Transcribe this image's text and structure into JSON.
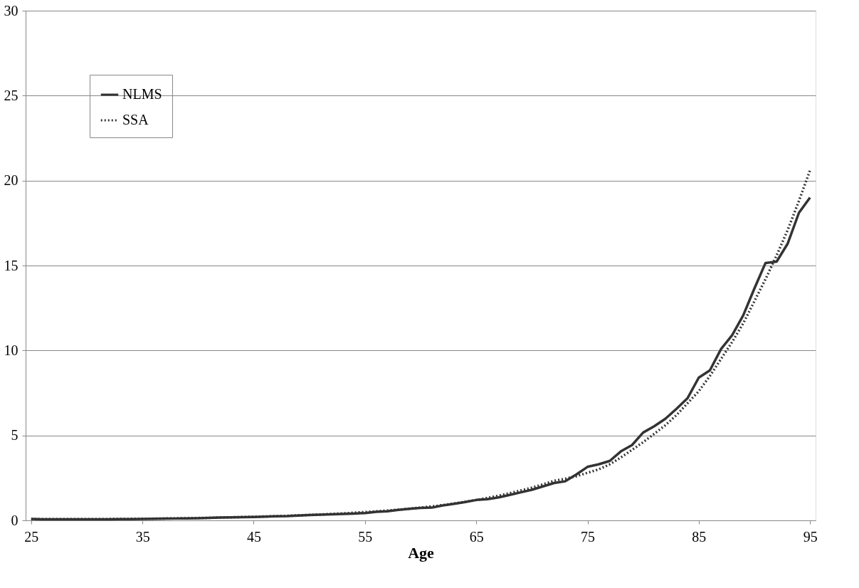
{
  "chart_data": {
    "type": "line",
    "xlabel": "Age",
    "x": [
      25,
      26,
      27,
      28,
      29,
      30,
      31,
      32,
      33,
      34,
      35,
      36,
      37,
      38,
      39,
      40,
      41,
      42,
      43,
      44,
      45,
      46,
      47,
      48,
      49,
      50,
      51,
      52,
      53,
      54,
      55,
      56,
      57,
      58,
      59,
      60,
      61,
      62,
      63,
      64,
      65,
      66,
      67,
      68,
      69,
      70,
      71,
      72,
      73,
      74,
      75,
      76,
      77,
      78,
      79,
      80,
      81,
      82,
      83,
      84,
      85,
      86,
      87,
      88,
      89,
      90,
      91,
      92,
      93,
      94,
      95
    ],
    "series": [
      {
        "name": "NLMS",
        "color": "#333333",
        "line_style": "solid",
        "values": [
          0.08,
          0.06,
          0.06,
          0.06,
          0.06,
          0.06,
          0.06,
          0.06,
          0.07,
          0.07,
          0.08,
          0.09,
          0.1,
          0.11,
          0.12,
          0.13,
          0.15,
          0.17,
          0.18,
          0.19,
          0.2,
          0.22,
          0.24,
          0.25,
          0.28,
          0.31,
          0.33,
          0.36,
          0.38,
          0.4,
          0.43,
          0.5,
          0.53,
          0.62,
          0.68,
          0.73,
          0.75,
          0.88,
          0.97,
          1.08,
          1.2,
          1.25,
          1.35,
          1.5,
          1.65,
          1.8,
          2.0,
          2.2,
          2.3,
          2.7,
          3.15,
          3.3,
          3.5,
          4.06,
          4.43,
          5.17,
          5.54,
          5.98,
          6.57,
          7.2,
          8.4,
          8.83,
          10.08,
          10.9,
          12.07,
          13.65,
          15.15,
          15.23,
          16.3,
          18.1,
          19.0
        ]
      },
      {
        "name": "SSA",
        "color": "#333333",
        "line_style": "dotted",
        "values": [
          0.07,
          0.07,
          0.07,
          0.07,
          0.07,
          0.07,
          0.07,
          0.08,
          0.08,
          0.09,
          0.09,
          0.1,
          0.11,
          0.12,
          0.13,
          0.14,
          0.15,
          0.17,
          0.18,
          0.2,
          0.21,
          0.23,
          0.25,
          0.27,
          0.3,
          0.32,
          0.35,
          0.38,
          0.41,
          0.45,
          0.49,
          0.53,
          0.58,
          0.63,
          0.69,
          0.75,
          0.82,
          0.9,
          0.99,
          1.09,
          1.2,
          1.32,
          1.45,
          1.6,
          1.76,
          1.93,
          2.12,
          2.33,
          2.45,
          2.6,
          2.8,
          3.0,
          3.3,
          3.7,
          4.15,
          4.6,
          5.1,
          5.6,
          6.2,
          6.9,
          7.6,
          8.5,
          9.5,
          10.5,
          11.6,
          12.9,
          14.2,
          15.6,
          17.1,
          18.8,
          20.6
        ]
      }
    ],
    "xlim": [
      24.5,
      95.5
    ],
    "xticks": [
      25,
      35,
      45,
      55,
      65,
      75,
      85,
      95
    ],
    "ylim": [
      0,
      30
    ],
    "yticks": [
      0,
      5,
      10,
      15,
      20,
      25,
      30
    ],
    "grid": "y",
    "legend": "top left",
    "marker": "none"
  }
}
